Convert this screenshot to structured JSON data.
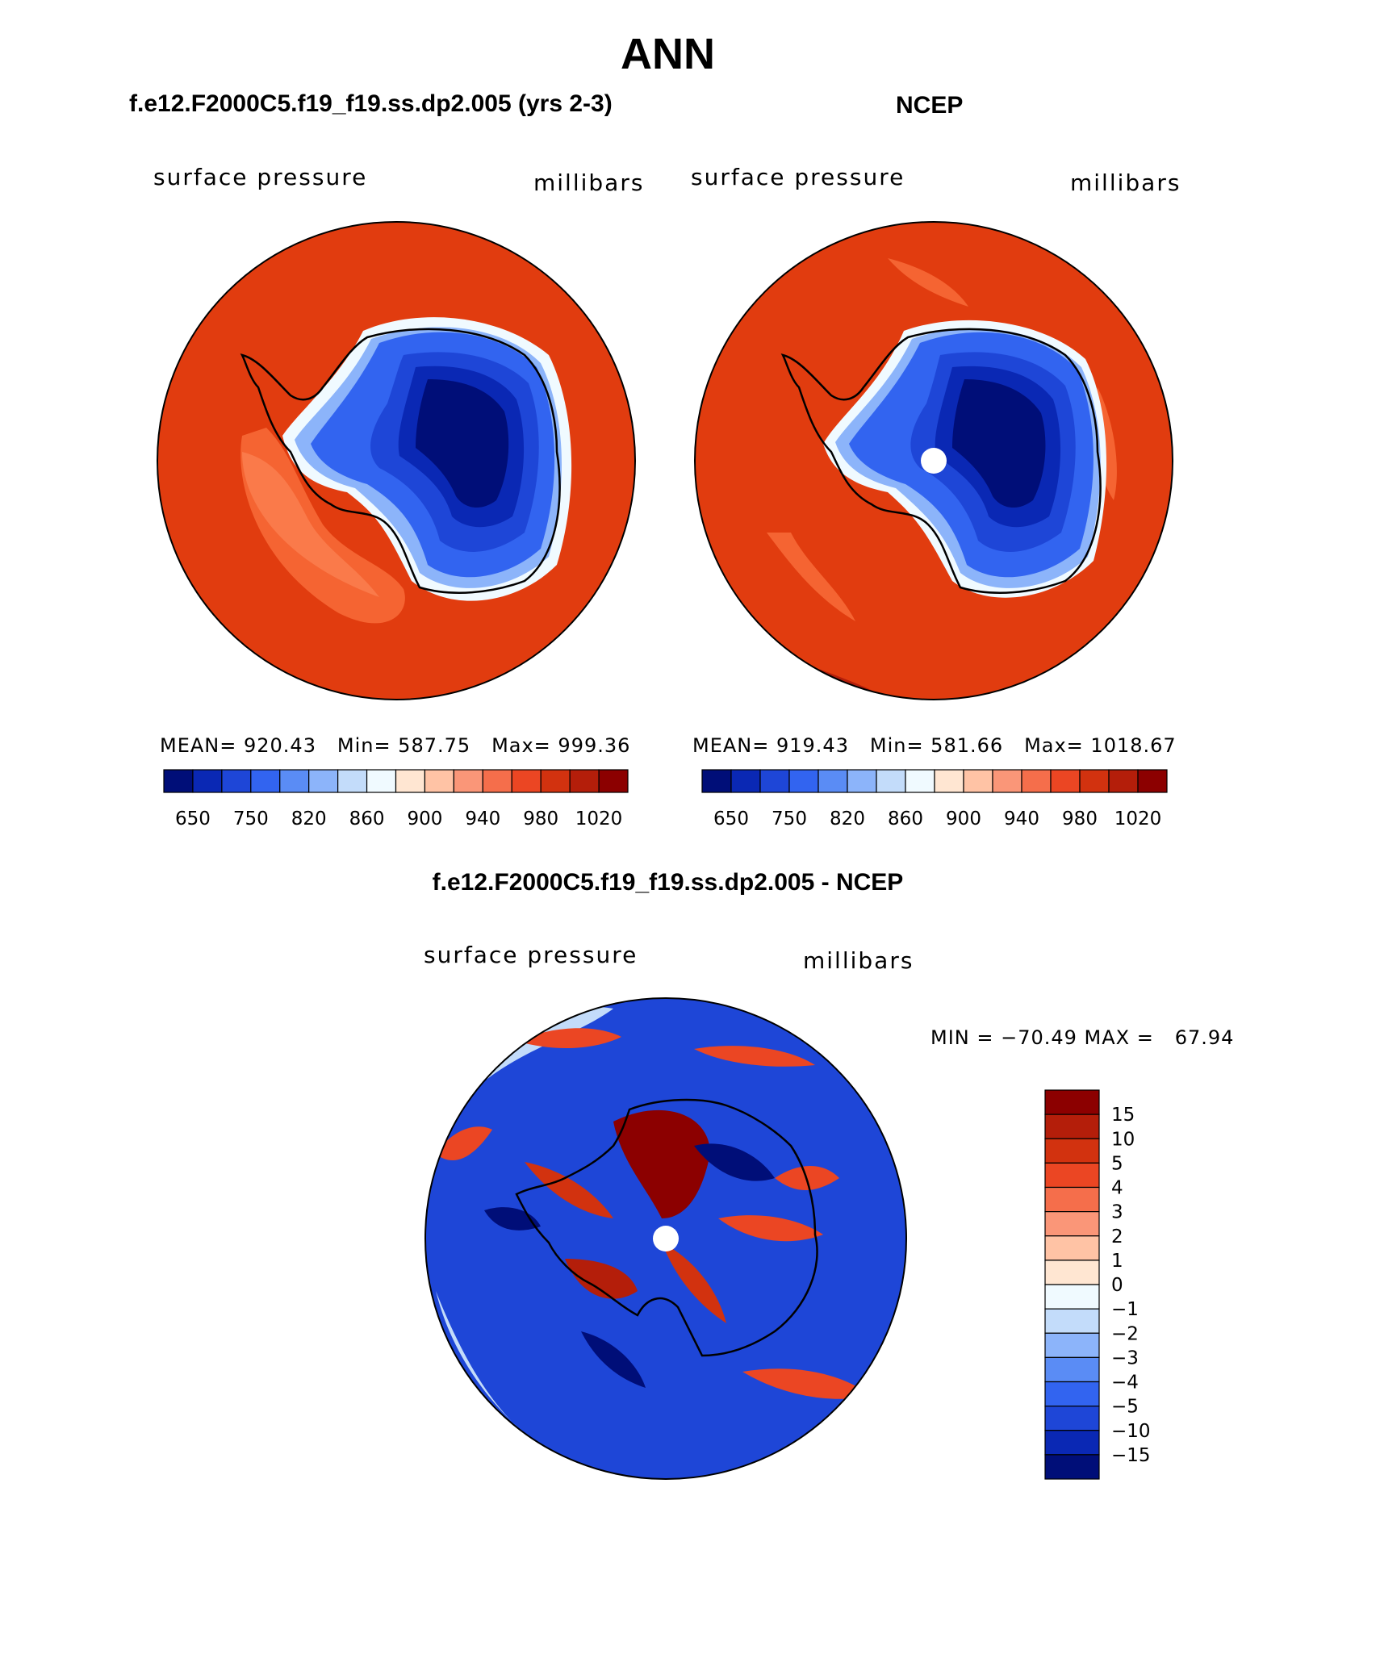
{
  "figure": {
    "title": "ANN"
  },
  "panels": [
    {
      "title": "f.e12.F2000C5.f19_f19.ss.dp2.005 (yrs 2-3)",
      "variable": "surface pressure",
      "units": "millibars",
      "stats": {
        "mean": "MEAN= 920.43",
        "min": "Min= 587.75",
        "max": "Max= 999.36"
      },
      "colorbar": {
        "ticks": [
          "650",
          "750",
          "820",
          "860",
          "900",
          "940",
          "980",
          "1020"
        ],
        "colors": [
          "#000e78",
          "#0a28b4",
          "#1e46d7",
          "#3264f0",
          "#5a8cf5",
          "#8cb4fa",
          "#c3dcfa",
          "#f0faff",
          "#ffe6d2",
          "#ffc3a5",
          "#fa9678",
          "#f56e4b",
          "#eb4623",
          "#d2320f",
          "#b41e0a",
          "#8c0000"
        ]
      }
    },
    {
      "title": "NCEP",
      "variable": "surface pressure",
      "units": "millibars",
      "stats": {
        "mean": "MEAN= 919.43",
        "min": "Min= 581.66",
        "max": "Max= 1018.67"
      },
      "colorbar": {
        "ticks": [
          "650",
          "750",
          "820",
          "860",
          "900",
          "940",
          "980",
          "1020"
        ],
        "colors": [
          "#000e78",
          "#0a28b4",
          "#1e46d7",
          "#3264f0",
          "#5a8cf5",
          "#8cb4fa",
          "#c3dcfa",
          "#f0faff",
          "#ffe6d2",
          "#ffc3a5",
          "#fa9678",
          "#f56e4b",
          "#eb4623",
          "#d2320f",
          "#b41e0a",
          "#8c0000"
        ]
      }
    },
    {
      "title": "f.e12.F2000C5.f19_f19.ss.dp2.005 - NCEP",
      "variable": "surface pressure",
      "units": "millibars",
      "stats": {
        "minmax": "MIN = −70.49 MAX =   67.94"
      },
      "colorbar": {
        "ticks": [
          "15",
          "10",
          "5",
          "4",
          "3",
          "2",
          "1",
          "0",
          "−1",
          "−2",
          "−3",
          "−4",
          "−5",
          "−10",
          "−15"
        ],
        "colors": [
          "#8c0000",
          "#b41e0a",
          "#d2320f",
          "#eb4623",
          "#f56e4b",
          "#fa9678",
          "#ffc3a5",
          "#ffe6d2",
          "#f0faff",
          "#c3dcfa",
          "#8cb4fa",
          "#5a8cf5",
          "#3264f0",
          "#1e46d7",
          "#0a28b4",
          "#000e78"
        ]
      }
    }
  ]
}
